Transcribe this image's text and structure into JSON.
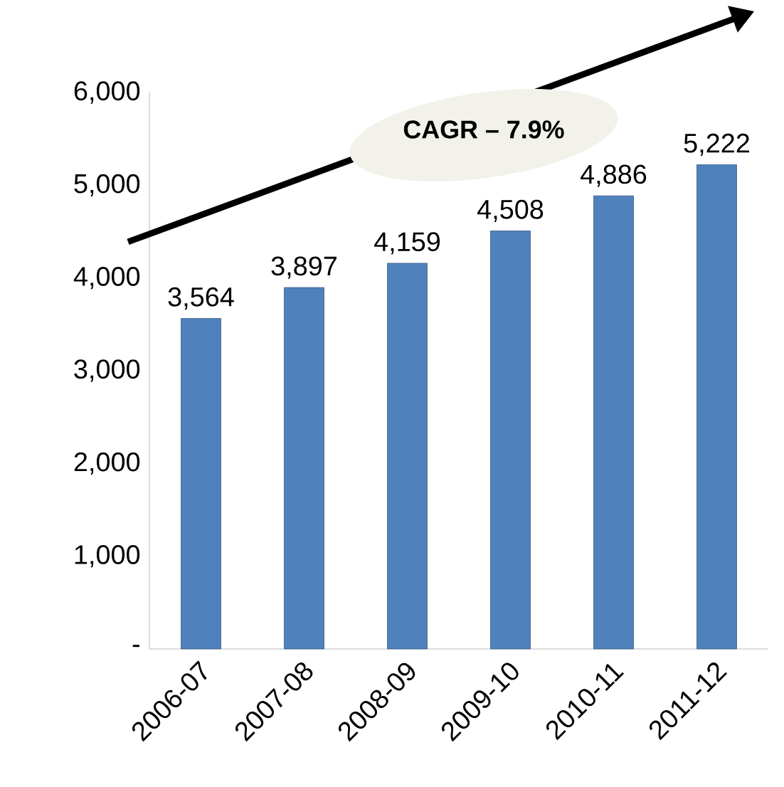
{
  "chart_data": {
    "type": "bar",
    "categories": [
      "2006-07",
      "2007-08",
      "2008-09",
      "2009-10",
      "2010-11",
      "2011-12"
    ],
    "values": [
      3564,
      3897,
      4159,
      4508,
      4886,
      5222
    ],
    "value_labels": [
      "3,564",
      "3,897",
      "4,159",
      "4,508",
      "4,886",
      "5,222"
    ],
    "color": "#4f81bd",
    "ylim": [
      0,
      6000
    ],
    "yticks": [
      {
        "value": 0,
        "label": "-"
      },
      {
        "value": 1000,
        "label": "1,000"
      },
      {
        "value": 2000,
        "label": "2,000"
      },
      {
        "value": 3000,
        "label": "3,000"
      },
      {
        "value": 4000,
        "label": "4,000"
      },
      {
        "value": 5000,
        "label": "5,000"
      },
      {
        "value": 6000,
        "label": "6,000"
      }
    ],
    "annotations": [
      "CAGR – 7.9%"
    ],
    "grid": false
  }
}
